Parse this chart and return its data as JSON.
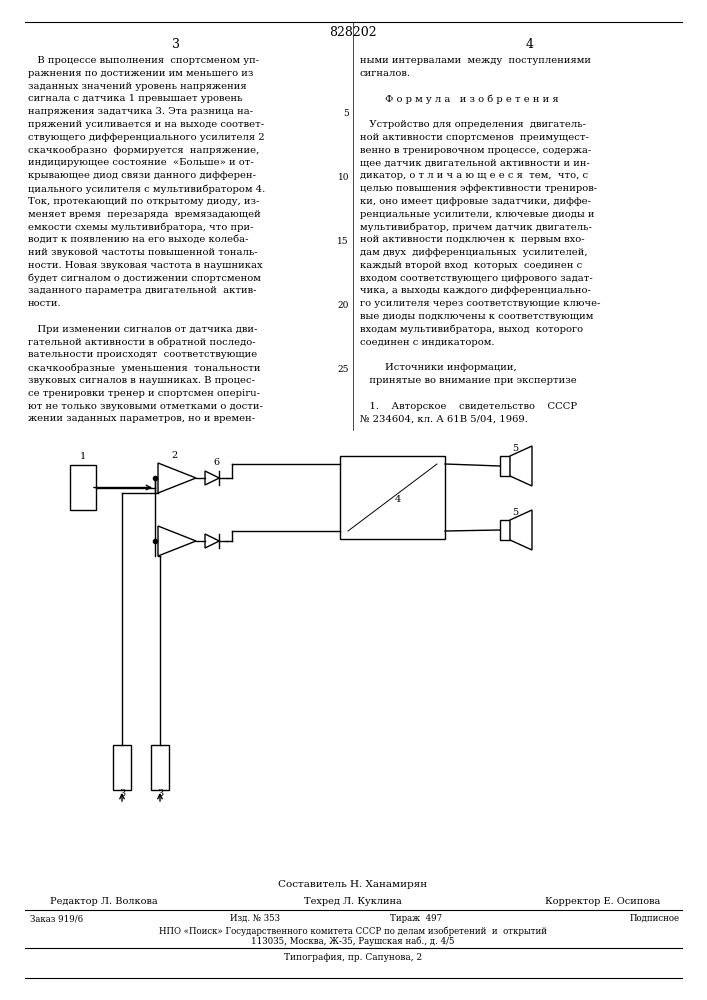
{
  "patent_number": "828202",
  "page_left": "3",
  "page_right": "4",
  "bg_color": "#ffffff",
  "text_color": "#000000",
  "left_col_lines": [
    "   В процессе выполнения  спортсменом уп-",
    "ражнения по достижении им меньшего из",
    "заданных значений уровень напряжения",
    "сигнала с датчика 1 превышает уровень",
    "напряжения задатчика 3. Эта разница на-",
    "пряжений усиливается и на выходе соответ-",
    "ствующего дифференциального усилителя 2",
    "скачкообразно  формируется  напряжение,",
    "индицирующее состояние  «Больше» и от-",
    "крывающее диод связи данного дифферен-",
    "циального усилителя с мультивибратором 4.",
    "Ток, протекающий по открытому диоду, из-",
    "меняет время  перезаряда  времязадающей",
    "емкости схемы мультивибратора, что при-",
    "водит к появлению на его выходе колеба-",
    "ний звуковой частоты повышенной тональ-",
    "ности. Новая звуковая частота в наушниках",
    "будет сигналом о достижении спортсменом",
    "заданного параметра двигательной  актив-",
    "ности.",
    "",
    "   При изменении сигналов от датчика дви-",
    "гательной активности в обратной последо-",
    "вательности происходят  соответствующие",
    "скачкообразные  уменьшения  тональности",
    "звуковых сигналов в наушниках. В процес-",
    "се тренировки тренер и спортсмен оперiru-",
    "ют не только звуковыми отметками о дости-",
    "жении заданных параметров, но и времен-"
  ],
  "right_col_lines": [
    "ными интервалами  между  поступлениями",
    "сигналов.",
    "",
    "        Ф о р м у л а   и з о б р е т е н и я",
    "",
    "   Устройство для определения  двигатель-",
    "ной активности спортсменов  преимущест-",
    "венно в тренировочном процессе, содержа-",
    "щее датчик двигательной активности и ин-",
    "дикатор, о т л и ч а ю щ е е с я  тем,  что, с",
    "целью повышения эффективности трениров-",
    "ки, оно имеет цифровые задатчики, диффе-",
    "ренциальные усилители, ключевые диоды и",
    "мультивибратор, причем датчик двигатель-",
    "ной активности подключен к  первым вхо-",
    "дам двух  дифференциальных  усилителей,",
    "каждый второй вход  которых  соединен с",
    "входом соответствующего цифрового задат-",
    "чика, а выходы каждого дифференциально-",
    "го усилителя через соответствующие ключе-",
    "вые диоды подключены к соответствующим",
    "входам мультивибратора, выход  которого",
    "соединен с индикатором.",
    "",
    "        Источники информации,",
    "   принятые во внимание при экспертизе",
    "",
    "   1.    Авторское    свидетельство    СССР",
    "№ 234604, кл. А 61В 5/04, 1969."
  ],
  "line_numbers": [
    {
      "n": "5",
      "row": 4
    },
    {
      "n": "10",
      "row": 9
    },
    {
      "n": "15",
      "row": 14
    },
    {
      "n": "20",
      "row": 19
    },
    {
      "n": "25",
      "row": 24
    }
  ],
  "footer_composer": "Составитель Н. Ханамирян",
  "footer_editor": "Редактор Л. Волкова",
  "footer_tech": "Техред Л. Куклина",
  "footer_corrector": "Корректор Е. Осипова",
  "footer_order": "Заказ 919/6",
  "footer_issue": "Изд. № 353",
  "footer_print": "Тираж  497",
  "footer_subscription": "Подписное",
  "footer_npo": "НПО «Поиск» Государственного комитета СССР по делам изобретений  и  открытий",
  "footer_address": "113035, Москва, Ж-35, Раушская наб., д. 4/5",
  "footer_typography": "Типография, пр. Сапунова, 2"
}
